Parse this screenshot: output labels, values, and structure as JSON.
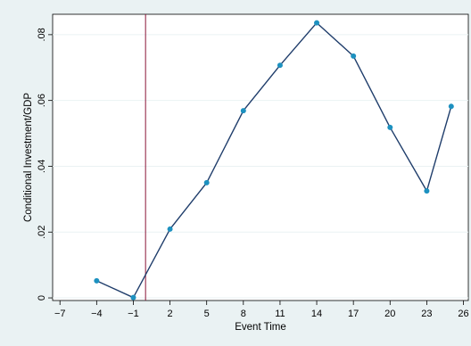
{
  "chart_data": {
    "type": "line",
    "title": "",
    "xlabel": "Event Time",
    "ylabel": "Conditional Investment/GDP",
    "xlim": [
      -7.6,
      26.4
    ],
    "ylim": [
      -0.0008,
      0.0862
    ],
    "xticks": [
      -7,
      -4,
      -1,
      2,
      5,
      8,
      11,
      14,
      17,
      20,
      23,
      26
    ],
    "xtick_labels": [
      "−7",
      "−4",
      "−1",
      "2",
      "5",
      "8",
      "11",
      "14",
      "17",
      "20",
      "23",
      "26"
    ],
    "yticks": [
      0,
      0.02,
      0.04,
      0.06,
      0.08
    ],
    "ytick_labels": [
      "0",
      ".02",
      ".04",
      ".06",
      ".08"
    ],
    "grid": "horizontal",
    "legend": "none",
    "vline": {
      "x": 0,
      "color": "#8a1538"
    },
    "series": [
      {
        "x": [
          -4,
          -1,
          2,
          5,
          8,
          11,
          14,
          17,
          20,
          23,
          25
        ],
        "y": [
          0.0052,
          0.0001,
          0.0209,
          0.035,
          0.0569,
          0.0707,
          0.0836,
          0.0735,
          0.0518,
          0.0325,
          0.0582
        ],
        "color": "#1f3d6b",
        "marker_color": "#1d91c0"
      }
    ],
    "colors": {
      "background": "#eaf2f3",
      "plot_background": "#ffffff",
      "gridline": "#eaf2f3"
    }
  }
}
